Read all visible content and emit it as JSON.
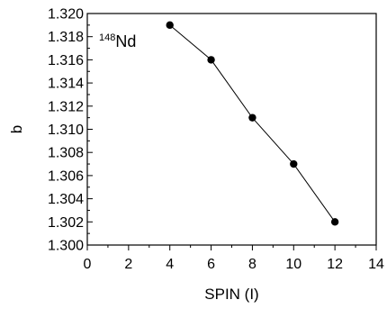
{
  "chart_data": {
    "type": "line",
    "title": "",
    "xlabel": "SPIN (I)",
    "ylabel": "b",
    "xlim": [
      0,
      14
    ],
    "ylim": [
      1.3,
      1.32
    ],
    "x_ticks": [
      "0",
      "2",
      "4",
      "6",
      "8",
      "10",
      "12",
      "14"
    ],
    "y_ticks": [
      "1.300",
      "1.302",
      "1.304",
      "1.306",
      "1.308",
      "1.310",
      "1.312",
      "1.314",
      "1.316",
      "1.318",
      "1.320"
    ],
    "grid": false,
    "legend": "none",
    "annotation": {
      "superscript": "148",
      "text": "Nd",
      "placement": "top-left"
    },
    "series": [
      {
        "x": [
          4,
          6,
          8,
          10,
          12
        ],
        "y": [
          1.319,
          1.316,
          1.311,
          1.307,
          1.302
        ]
      }
    ]
  }
}
